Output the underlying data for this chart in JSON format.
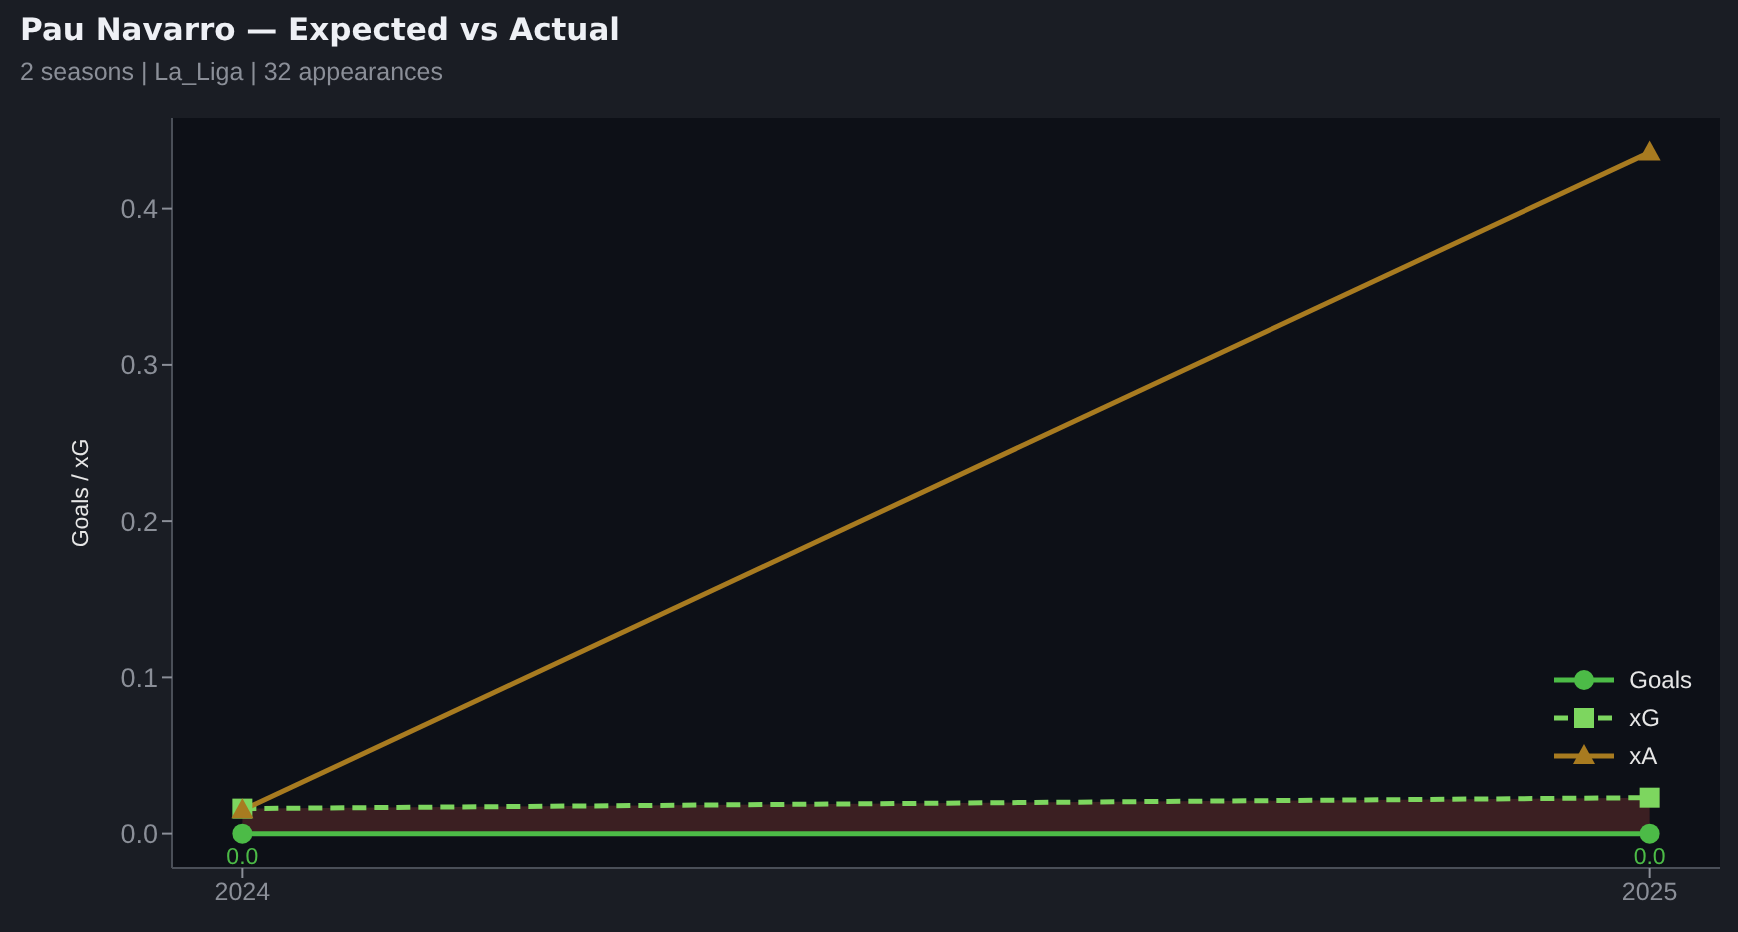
{
  "chart_data": {
    "type": "line",
    "title": "Pau Navarro — Expected vs Actual",
    "subtitle": "2 seasons | La_Liga | 32 appearances",
    "ylabel": "Goals / xG",
    "x": [
      2024,
      2025
    ],
    "xlim": [
      2023.95,
      2025.05
    ],
    "xticks": [
      2024,
      2025
    ],
    "ylim": [
      -0.022,
      0.458
    ],
    "yticks": [
      {
        "value": 0,
        "label": "0.0"
      },
      0.1,
      0.2,
      0.3,
      0.4
    ],
    "legend": "bottom right",
    "series": [
      {
        "name": "Goals",
        "color": "#4cbb47",
        "values": [
          0,
          0
        ],
        "marker": "circle",
        "line_style": "solid",
        "value_labels": [
          "0.0",
          "0.0"
        ]
      },
      {
        "name": "xG",
        "color": "#7dd65f",
        "values": [
          0.016,
          0.023
        ],
        "marker": "square",
        "line_style": "dashed",
        "lower": [
          0,
          0
        ],
        "upper": [
          0.016,
          0.023
        ]
      },
      {
        "name": "xA",
        "color": "#a87b20",
        "values": [
          0.015,
          0.436
        ],
        "marker": "triangle",
        "line_style": "solid"
      }
    ]
  }
}
